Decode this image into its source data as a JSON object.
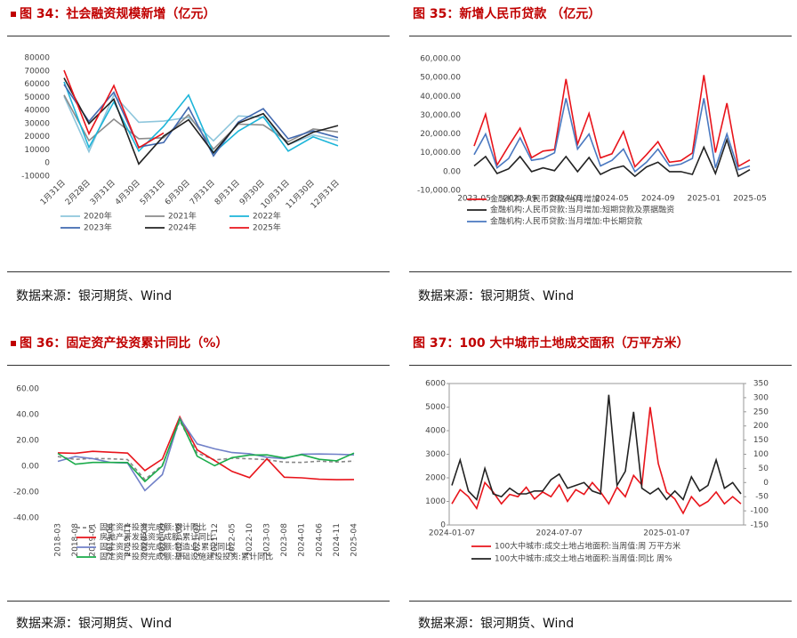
{
  "chart_data": [
    {
      "type": "line",
      "title": "图 34：社会融资规模新增（亿元）",
      "caption": "数据来源：银河期货、Wind",
      "categories": [
        "1月31日",
        "2月28日",
        "3月31日",
        "4月30日",
        "5月31日",
        "6月30日",
        "7月31日",
        "8月31日",
        "9月30日",
        "10月31日",
        "11月30日",
        "12月31日"
      ],
      "ylim": [
        -10000,
        80000
      ],
      "yticks": [
        -10000,
        0,
        10000,
        20000,
        30000,
        40000,
        50000,
        60000,
        70000,
        80000
      ],
      "series": [
        {
          "name": "2020年",
          "color": "#8ec6dc",
          "values": [
            50800,
            8600,
            51800,
            31000,
            31900,
            34800,
            16900,
            35800,
            34800,
            14000,
            21300,
            17200
          ]
        },
        {
          "name": "2021年",
          "color": "#8c8c8c",
          "values": [
            51700,
            17100,
            33400,
            18500,
            19200,
            36700,
            10600,
            29600,
            29000,
            16200,
            25900,
            23700
          ]
        },
        {
          "name": "2022年",
          "color": "#1cb5d9",
          "values": [
            61700,
            11900,
            46500,
            9100,
            27900,
            51700,
            7600,
            24300,
            35300,
            9100,
            19900,
            13100
          ]
        },
        {
          "name": "2023年",
          "color": "#4169b0",
          "values": [
            59800,
            31600,
            53800,
            12200,
            15600,
            42300,
            5400,
            31200,
            41300,
            18400,
            24500,
            19300
          ]
        },
        {
          "name": "2024年",
          "color": "#222222",
          "values": [
            64700,
            29900,
            48600,
            -700,
            20600,
            32900,
            7700,
            30300,
            37600,
            14000,
            23400,
            28500
          ]
        },
        {
          "name": "2025年",
          "color": "#e8141b",
          "values": [
            70600,
            22300,
            58900,
            11600,
            22900,
            null,
            null,
            null,
            null,
            null,
            null,
            null
          ]
        }
      ]
    },
    {
      "type": "line",
      "title": "图 35：新增人民币贷款 （亿元）",
      "caption": "数据来源：银河期货、Wind",
      "categories": [
        "2023-05",
        null,
        null,
        null,
        "2023-09",
        null,
        null,
        null,
        "2024-01",
        null,
        null,
        null,
        "2024-05",
        null,
        null,
        null,
        "2024-09",
        null,
        null,
        null,
        "2025-01",
        null,
        null,
        null,
        "2025-05"
      ],
      "ylim": [
        -10000,
        60000
      ],
      "yticks": [
        {
          "value": -10000,
          "label": "-10,000.00"
        },
        {
          "value": 0,
          "label": "0.00"
        },
        {
          "value": 10000,
          "label": "10,000.00"
        },
        {
          "value": 20000,
          "label": "20,000.00"
        },
        {
          "value": 30000,
          "label": "30,000.00"
        },
        {
          "value": 40000,
          "label": "40,000.00"
        },
        {
          "value": 50000,
          "label": "50,000.00"
        },
        {
          "value": 60000,
          "label": "60,000.00"
        }
      ],
      "series": [
        {
          "name": "金融机构:人民币贷款:当月增加",
          "color": "#e8141b",
          "values": [
            13600,
            30500,
            3500,
            13600,
            23100,
            7400,
            10900,
            11700,
            49200,
            14500,
            30900,
            7300,
            9500,
            21300,
            2600,
            9000,
            15900,
            5000,
            5800,
            9900,
            51300,
            10100,
            36400,
            2800,
            6200
          ]
        },
        {
          "name": "金融机构:人民币贷款:当月增加:短期贷款及票据融资",
          "color": "#222222",
          "values": [
            3000,
            8000,
            -1000,
            1500,
            8000,
            0,
            2000,
            500,
            8000,
            0,
            7500,
            -1500,
            1500,
            3000,
            -2500,
            2500,
            5000,
            0,
            0,
            -1500,
            13000,
            -1000,
            17000,
            -2500,
            1000
          ]
        },
        {
          "name": "金融机构:人民币贷款:当月增加:中长期贷款",
          "color": "#4a78c0",
          "values": [
            9000,
            20000,
            2000,
            7000,
            18000,
            6000,
            7000,
            10000,
            39000,
            12000,
            20000,
            3000,
            6000,
            12000,
            0,
            5000,
            12000,
            3000,
            4000,
            7000,
            39000,
            2000,
            20000,
            1000,
            3000
          ]
        }
      ]
    },
    {
      "type": "line",
      "title": "图 36：固定资产投资累计同比（%）",
      "caption": "数据来源：银河期货、Wind",
      "categories": [
        "2018-03",
        "2018-08",
        "2019-01",
        "2019-06",
        "2019-11",
        "2020-04",
        "2020-09",
        "2021-02",
        "2021-07",
        "2021-12",
        "2022-05",
        "2022-10",
        "2023-03",
        "2023-08",
        "2024-01",
        "2024-06",
        "2024-11",
        "2025-04"
      ],
      "ylim": [
        -40,
        60
      ],
      "yticks": [
        {
          "value": -40,
          "label": "-40.00"
        },
        {
          "value": -20,
          "label": "-20.00"
        },
        {
          "value": 0,
          "label": "0.00"
        },
        {
          "value": 20,
          "label": "20.00"
        },
        {
          "value": 40,
          "label": "40.00"
        },
        {
          "value": 60,
          "label": "60.00"
        }
      ],
      "series": [
        {
          "name": "固定资产投资完成额:累计同比",
          "color": "#888888",
          "style": "dashed",
          "values": [
            7.5,
            5.3,
            6.1,
            5.8,
            5.2,
            -10.3,
            0.8,
            35.0,
            10.3,
            4.9,
            6.2,
            5.8,
            5.1,
            3.2,
            3.0,
            3.9,
            3.3,
            4.0
          ]
        },
        {
          "name": "房地产开发投资完成额:累计同比",
          "color": "#e8141b",
          "values": [
            10.4,
            10.1,
            11.6,
            10.9,
            10.2,
            -3.3,
            5.6,
            38.3,
            12.7,
            4.4,
            -4.0,
            -8.8,
            5.8,
            -8.5,
            -9.0,
            -10.1,
            -10.4,
            -10.3
          ]
        },
        {
          "name": "固定资产投资完成额:制造业:累计同比",
          "color": "#7080c8",
          "values": [
            3.8,
            7.5,
            5.9,
            3.0,
            2.5,
            -18.8,
            -6.5,
            37.3,
            17.3,
            13.5,
            10.6,
            9.7,
            7.0,
            5.9,
            9.4,
            9.5,
            9.3,
            8.8
          ]
        },
        {
          "name": "固定资产投资完成额:基础设施建设投资:累计同比",
          "color": "#1aab4a",
          "values": [
            10.0,
            1.6,
            3.0,
            3.0,
            2.9,
            -11.8,
            0.2,
            36.6,
            7.8,
            0.4,
            6.7,
            8.7,
            8.8,
            6.4,
            9.0,
            5.4,
            4.2,
            10.2
          ]
        }
      ]
    },
    {
      "type": "line",
      "title": "图 37：100 大中城市土地成交面积（万平方米）",
      "caption": "数据来源：银河期货、Wind",
      "categories": [
        "2024-01-07",
        null,
        null,
        null,
        null,
        null,
        null,
        null,
        null,
        null,
        null,
        null,
        null,
        "2024-07-07",
        null,
        null,
        null,
        null,
        null,
        null,
        null,
        null,
        null,
        null,
        null,
        null,
        "2025-01-07",
        null,
        null,
        null,
        null,
        null,
        null,
        null,
        null,
        null
      ],
      "ylim": [
        0,
        6000
      ],
      "yticks": [
        0,
        1000,
        2000,
        3000,
        4000,
        5000,
        6000
      ],
      "y2lim": [
        -150,
        350
      ],
      "y2ticks": [
        -150,
        -100,
        -50,
        0,
        50,
        100,
        150,
        200,
        250,
        300,
        350
      ],
      "series": [
        {
          "name": "100大中城市:成交土地占地面积:当周值:周 万平方米",
          "color": "#e8141b",
          "values": [
            900,
            1500,
            1200,
            700,
            1800,
            1400,
            900,
            1300,
            1200,
            1600,
            1100,
            1400,
            1200,
            1700,
            1000,
            1500,
            1300,
            1800,
            1400,
            900,
            1600,
            1200,
            2100,
            1700,
            5000,
            2600,
            1400,
            1100,
            500,
            1200,
            800,
            1000,
            1400,
            900,
            1200,
            900
          ]
        },
        {
          "name": "100大中城市:成交土地占地面积:当周值:同比 周%",
          "color": "#222222",
          "axis": "y2",
          "values": [
            -10,
            80,
            -30,
            -60,
            50,
            -40,
            -50,
            -20,
            -40,
            -40,
            -30,
            -30,
            10,
            30,
            -20,
            -10,
            0,
            -30,
            -40,
            310,
            -10,
            40,
            250,
            -20,
            -40,
            -20,
            -60,
            -30,
            -60,
            20,
            -30,
            -10,
            80,
            -20,
            0,
            -40
          ]
        }
      ]
    }
  ]
}
